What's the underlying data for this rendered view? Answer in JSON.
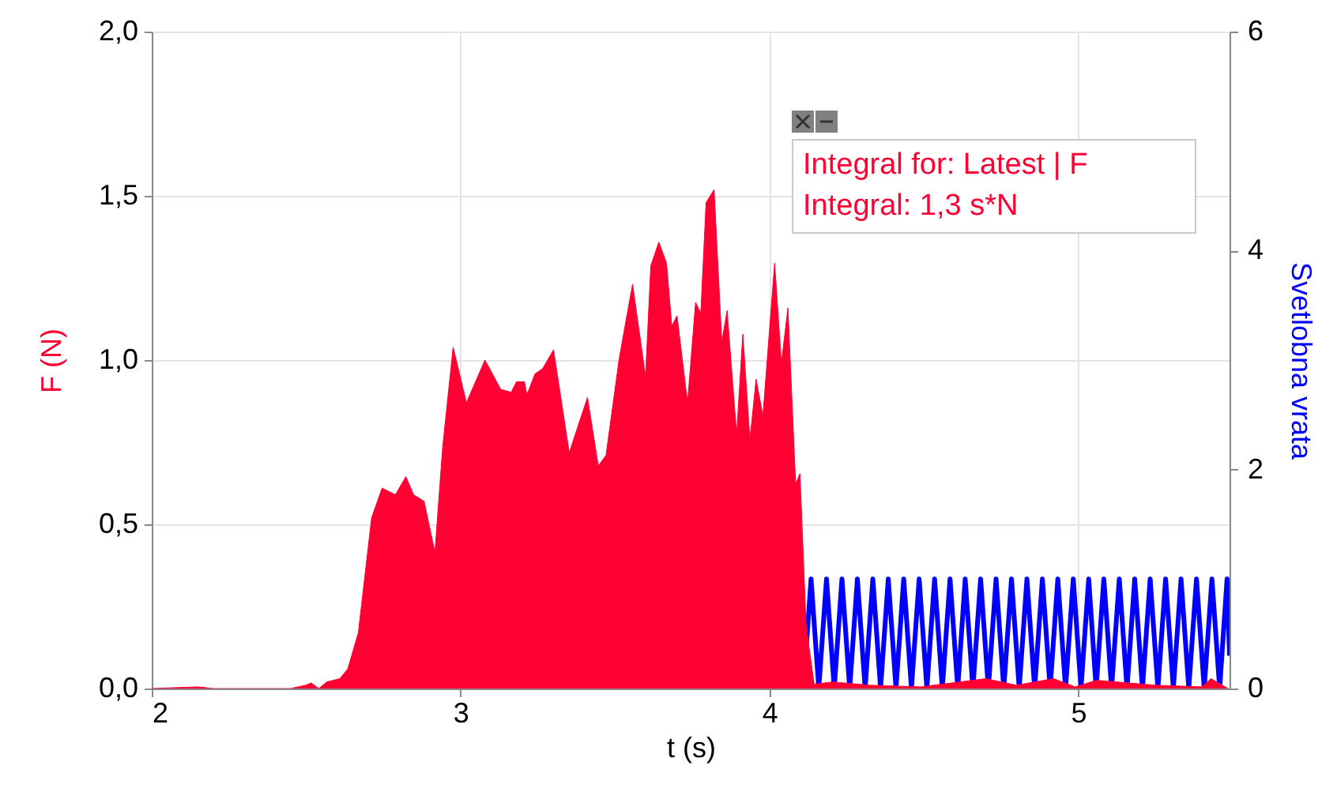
{
  "chart_data": {
    "type": "area",
    "xlabel": "t (s)",
    "ylabel": "F (N)",
    "y2label": "Svetlobna vrata",
    "xlim": [
      2,
      5.49
    ],
    "xticks": [
      2,
      3,
      4,
      5
    ],
    "ylim": [
      0,
      2
    ],
    "yticks": [
      {
        "value": 0,
        "label": "0,0"
      },
      {
        "value": 0.5,
        "label": "0,5"
      },
      {
        "value": 1,
        "label": "1,0"
      },
      {
        "value": 1.5,
        "label": "1,5"
      },
      {
        "value": 2,
        "label": "2,0"
      }
    ],
    "y2lim": [
      0,
      6
    ],
    "y2ticks": [
      0,
      2,
      4,
      6
    ],
    "grid": true,
    "annotations": [
      "Integral for: Latest | F",
      "Integral: 1,3 s*N"
    ],
    "series": [
      {
        "color": "#ff0033",
        "x": [
          2.0,
          2.15,
          2.2,
          2.45,
          2.499,
          2.516,
          2.541,
          2.567,
          2.609,
          2.635,
          2.669,
          2.712,
          2.746,
          2.789,
          2.823,
          2.848,
          2.882,
          2.917,
          2.942,
          2.976,
          3.019,
          3.079,
          3.13,
          3.164,
          3.181,
          3.207,
          3.215,
          3.241,
          3.266,
          3.301,
          3.352,
          3.411,
          3.446,
          3.471,
          3.514,
          3.557,
          3.599,
          3.616,
          3.642,
          3.667,
          3.684,
          3.701,
          3.735,
          3.761,
          3.778,
          3.795,
          3.821,
          3.846,
          3.863,
          3.894,
          3.914,
          3.937,
          3.957,
          3.979,
          4.017,
          4.039,
          4.06,
          4.085,
          4.099,
          4.119,
          4.145,
          4.205,
          4.325,
          4.49,
          4.7,
          4.8,
          4.92,
          4.99,
          5.06,
          5.25,
          5.4,
          5.43,
          5.485
        ],
        "values": [
          0,
          0.005,
          0,
          0,
          0.01,
          0.017,
          0,
          0.02,
          0.03,
          0.06,
          0.17,
          0.52,
          0.61,
          0.59,
          0.645,
          0.59,
          0.57,
          0.414,
          0.734,
          1.039,
          0.87,
          1.0,
          0.911,
          0.902,
          0.934,
          0.934,
          0.894,
          0.958,
          0.974,
          1.031,
          0.718,
          0.886,
          0.678,
          0.71,
          1.006,
          1.231,
          0.95,
          1.287,
          1.359,
          1.295,
          1.103,
          1.135,
          0.87,
          1.175,
          1.143,
          1.479,
          1.519,
          1.054,
          1.151,
          0.774,
          1.079,
          0.758,
          0.942,
          0.83,
          1.295,
          0.99,
          1.159,
          0.622,
          0.654,
          0.189,
          0.013,
          0.02,
          0.01,
          0.005,
          0.03,
          0.01,
          0.03,
          0.005,
          0.025,
          0.01,
          0.005,
          0.03,
          0
        ]
      },
      {
        "type": "line",
        "axis": "y2",
        "color": "#0000ff",
        "x": [
          4.12,
          4.135,
          4.16,
          4.185,
          4.21,
          4.235,
          4.26,
          4.285,
          4.31,
          4.335,
          4.36,
          4.385,
          4.41,
          4.435,
          4.46,
          4.485,
          4.51,
          4.535,
          4.56,
          4.585,
          4.61,
          4.634,
          4.659,
          4.684,
          4.709,
          4.734,
          4.759,
          4.784,
          4.809,
          4.834,
          4.859,
          4.884,
          4.909,
          4.934,
          4.959,
          4.984,
          5.009,
          5.034,
          5.058,
          5.083,
          5.108,
          5.133,
          5.158,
          5.183,
          5.208,
          5.233,
          5.258,
          5.283,
          5.308,
          5.333,
          5.358,
          5.383,
          5.408,
          5.433,
          5.458,
          5.482,
          5.49
        ],
        "values": [
          0.4,
          1,
          0,
          1,
          0,
          1,
          0,
          1,
          0,
          1,
          0,
          1,
          0,
          1,
          0,
          1,
          0,
          1,
          0,
          1,
          0,
          1,
          0,
          1,
          0,
          1,
          0,
          1,
          0,
          1,
          0,
          1,
          0,
          1,
          0,
          1,
          0,
          1,
          0,
          1,
          0,
          1,
          0,
          1,
          0,
          1,
          0,
          1,
          0,
          1,
          0,
          1,
          0,
          1,
          0,
          1,
          0.3
        ]
      }
    ]
  }
}
